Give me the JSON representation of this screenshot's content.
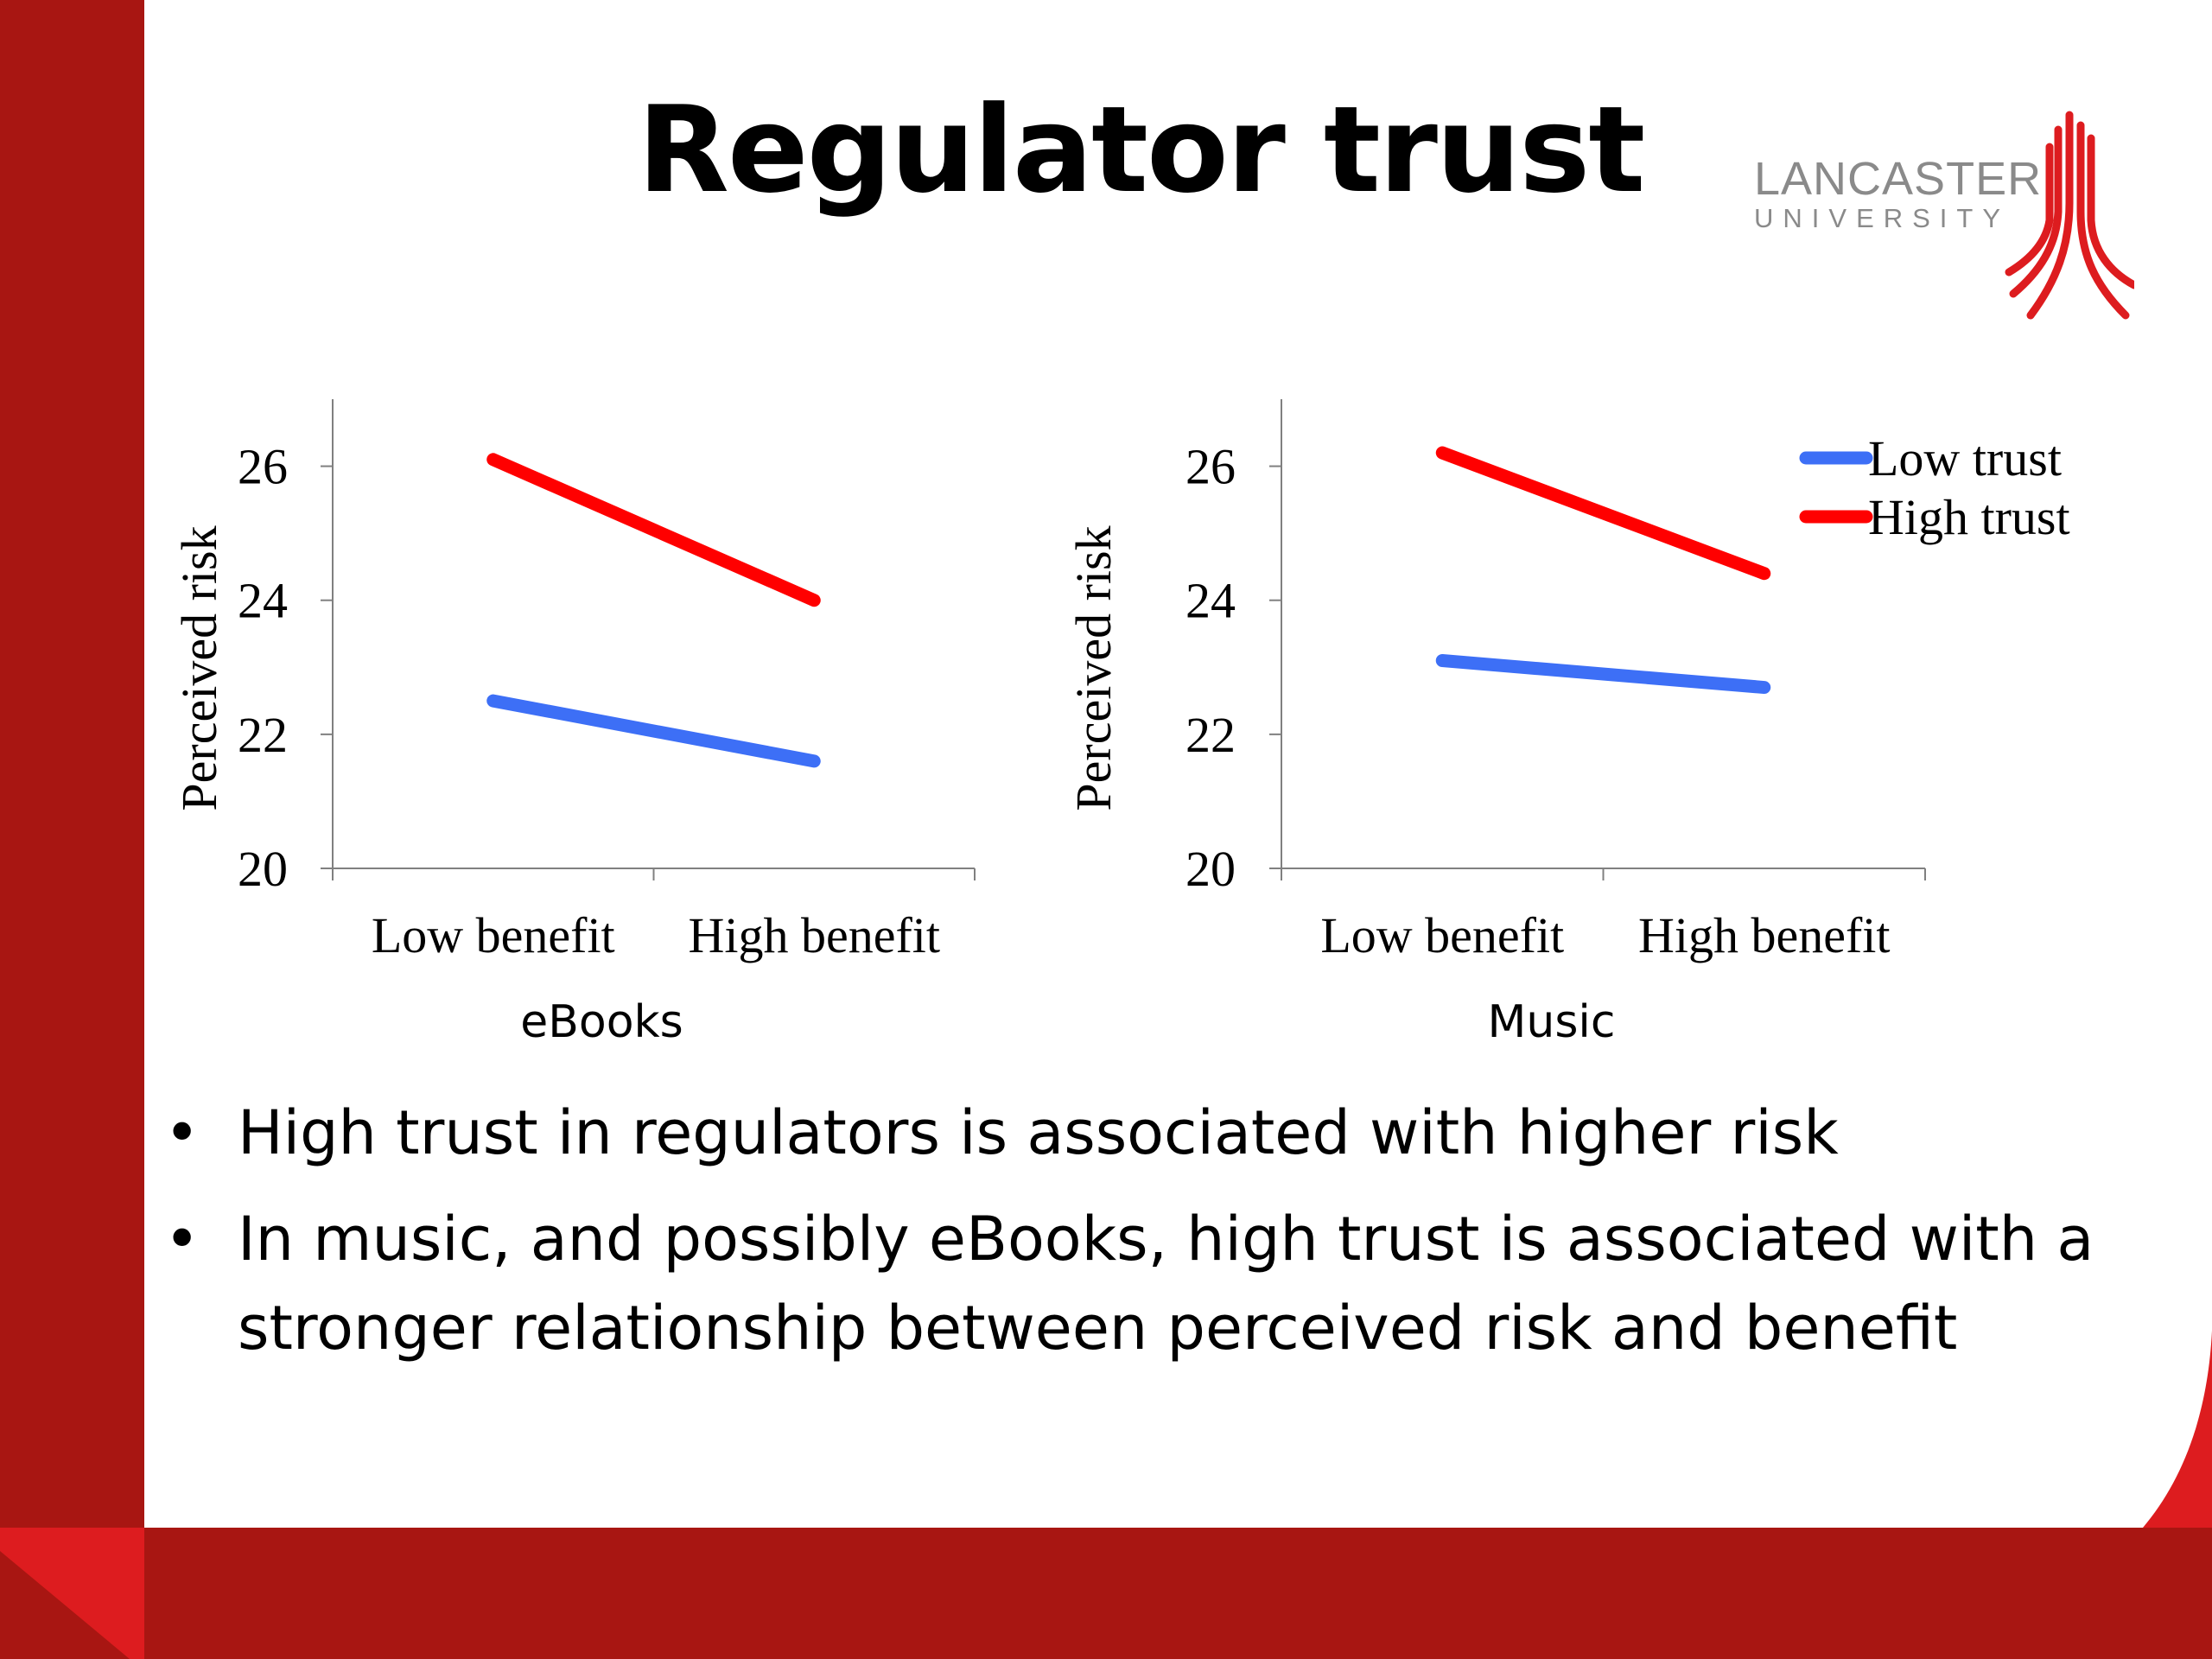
{
  "slide": {
    "title": "Regulator trust",
    "logo": {
      "word": "LANCASTER",
      "sub": "UNIVERSITY"
    },
    "bullets": [
      "High trust in regulators is associated with higher risk",
      "In music, and possibly eBooks, high trust is associated with a stronger relationship between perceived risk and benefit"
    ]
  },
  "colors": {
    "low_trust": "#3d6ff6",
    "high_trust": "#ff0000",
    "theme_red": "#a81612"
  },
  "chart_data": [
    {
      "type": "line",
      "title": "",
      "xlabel": "eBooks",
      "ylabel": "Perceived risk",
      "categories": [
        "Low benefit",
        "High benefit"
      ],
      "ylim": [
        20,
        27
      ],
      "yticks": [
        20,
        22,
        24,
        26
      ],
      "series": [
        {
          "name": "Low trust",
          "values": [
            22.5,
            21.6
          ]
        },
        {
          "name": "High trust",
          "values": [
            26.1,
            24.0
          ]
        }
      ],
      "legend": null
    },
    {
      "type": "line",
      "title": "",
      "xlabel": "Music",
      "ylabel": "Perceived risk",
      "categories": [
        "Low benefit",
        "High benefit"
      ],
      "ylim": [
        20,
        27
      ],
      "yticks": [
        20,
        22,
        24,
        26
      ],
      "series": [
        {
          "name": "Low trust",
          "values": [
            23.1,
            22.7
          ]
        },
        {
          "name": "High trust",
          "values": [
            26.2,
            24.4
          ]
        }
      ],
      "legend": "top-right"
    }
  ]
}
